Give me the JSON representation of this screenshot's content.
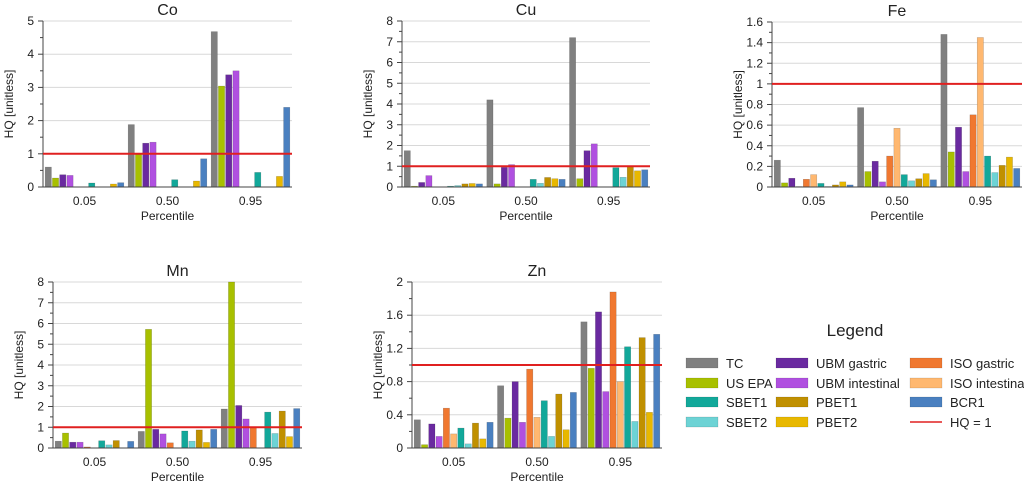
{
  "legend": {
    "title": "Legend",
    "hq_line_label": "HQ = 1",
    "hq_line_color": "#e02020"
  },
  "series": [
    {
      "name": "TC",
      "color": "#808080"
    },
    {
      "name": "US EPA",
      "color": "#a8c000"
    },
    {
      "name": "UBM gastric",
      "color": "#6a2aa0"
    },
    {
      "name": "UBM intestinal",
      "color": "#b050e0"
    },
    {
      "name": "ISO gastric",
      "color": "#f07830"
    },
    {
      "name": "ISO intestinal",
      "color": "#ffb870"
    },
    {
      "name": "SBET1",
      "color": "#12a89a"
    },
    {
      "name": "SBET2",
      "color": "#6dd3d5"
    },
    {
      "name": "PBET1",
      "color": "#c09000"
    },
    {
      "name": "PBET2",
      "color": "#e8b800"
    },
    {
      "name": "BCR1",
      "color": "#4a80c0"
    }
  ],
  "legend_order": [
    "TC",
    "US EPA",
    "SBET1",
    "SBET2",
    "UBM gastric",
    "UBM intestinal",
    "PBET1",
    "PBET2",
    "ISO gastric",
    "ISO intestinal",
    "BCR1"
  ],
  "chart_data": [
    {
      "type": "bar",
      "title": "Co",
      "xlabel": "Percentile",
      "ylabel": "HQ [unitless]",
      "categories": [
        "0.05",
        "0.50",
        "0.95"
      ],
      "ylim": [
        0,
        5
      ],
      "yticks": [
        0,
        1,
        2,
        3,
        4,
        5
      ],
      "ytick_labels": [
        "0",
        "1",
        "2",
        "3",
        "4",
        "5"
      ],
      "grid": true,
      "reference_line": 1,
      "values": [
        [
          0.6,
          0.27,
          0.37,
          0.35,
          null,
          null,
          0.12,
          null,
          null,
          0.09,
          0.13
        ],
        [
          1.88,
          0.98,
          1.32,
          1.35,
          null,
          null,
          0.22,
          null,
          null,
          0.18,
          0.85
        ],
        [
          4.68,
          3.04,
          3.38,
          3.5,
          null,
          null,
          0.44,
          null,
          null,
          0.32,
          2.4
        ]
      ]
    },
    {
      "type": "bar",
      "title": "Cu",
      "xlabel": "Percentile",
      "ylabel": "HQ [unitless]",
      "categories": [
        "0.05",
        "0.50",
        "0.95"
      ],
      "ylim": [
        0,
        8
      ],
      "yticks": [
        0,
        1,
        2,
        3,
        4,
        5,
        6,
        7,
        8
      ],
      "ytick_labels": [
        "0",
        "1",
        "2",
        "3",
        "4",
        "5",
        "6",
        "7",
        "8"
      ],
      "grid": true,
      "reference_line": 1,
      "values": [
        [
          1.75,
          0.04,
          0.22,
          0.55,
          null,
          null,
          0.04,
          0.07,
          0.15,
          0.17,
          0.15
        ],
        [
          4.2,
          0.15,
          0.95,
          1.08,
          null,
          null,
          0.37,
          0.18,
          0.46,
          0.4,
          0.37
        ],
        [
          7.2,
          0.4,
          1.75,
          2.08,
          null,
          null,
          0.93,
          0.47,
          1.0,
          0.78,
          0.83
        ]
      ]
    },
    {
      "type": "bar",
      "title": "Fe",
      "xlabel": "Percentile",
      "ylabel": "HQ [unitless]",
      "categories": [
        "0.05",
        "0.50",
        "0.95"
      ],
      "ylim": [
        0,
        1.6
      ],
      "yticks": [
        0,
        0.2,
        0.4,
        0.6,
        0.8,
        1,
        1.2,
        1.4,
        1.6
      ],
      "ytick_labels": [
        "0",
        "0.2",
        "0.4",
        "0.6",
        "0.8",
        "1",
        "1.2",
        "1.4",
        "1.6"
      ],
      "grid": true,
      "reference_line": 1,
      "values": [
        [
          0.26,
          0.04,
          0.085,
          0.005,
          0.075,
          0.12,
          0.035,
          0.005,
          0.02,
          0.05,
          0.02
        ],
        [
          0.77,
          0.15,
          0.25,
          0.05,
          0.3,
          0.57,
          0.12,
          0.06,
          0.08,
          0.13,
          0.07
        ],
        [
          1.48,
          0.34,
          0.58,
          0.15,
          0.7,
          1.45,
          0.3,
          0.14,
          0.21,
          0.29,
          0.18
        ]
      ]
    },
    {
      "type": "bar",
      "title": "Mn",
      "xlabel": "Percentile",
      "ylabel": "HQ [unitless]",
      "categories": [
        "0.05",
        "0.50",
        "0.95"
      ],
      "ylim": [
        0,
        8
      ],
      "yticks": [
        0,
        1,
        2,
        3,
        4,
        5,
        6,
        7,
        8
      ],
      "ytick_labels": [
        "0",
        "1",
        "2",
        "3",
        "4",
        "5",
        "6",
        "7",
        "8"
      ],
      "grid": true,
      "reference_line": 1,
      "values": [
        [
          0.33,
          0.72,
          0.28,
          0.28,
          0.05,
          null,
          0.35,
          0.15,
          0.36,
          null,
          0.32
        ],
        [
          0.8,
          5.72,
          0.9,
          0.68,
          0.25,
          null,
          0.82,
          0.33,
          0.87,
          0.27,
          0.9
        ],
        [
          1.88,
          8.0,
          2.05,
          1.4,
          1.0,
          null,
          1.73,
          0.7,
          1.78,
          0.55,
          1.9
        ]
      ]
    },
    {
      "type": "bar",
      "title": "Zn",
      "xlabel": "Percentile",
      "ylabel": "HQ [unitless]",
      "categories": [
        "0.05",
        "0.50",
        "0.95"
      ],
      "ylim": [
        0,
        2
      ],
      "yticks": [
        0,
        0.4,
        0.8,
        1.2,
        1.6,
        2
      ],
      "ytick_labels": [
        "0",
        "0.4",
        "0.8",
        "1.2",
        "1.6",
        "2"
      ],
      "grid": true,
      "reference_line": 1,
      "values": [
        [
          0.34,
          0.04,
          0.29,
          0.14,
          0.48,
          0.17,
          0.24,
          0.05,
          0.3,
          0.11,
          0.31
        ],
        [
          0.75,
          0.36,
          0.8,
          0.31,
          0.95,
          0.37,
          0.57,
          0.14,
          0.65,
          0.22,
          0.67
        ],
        [
          1.52,
          0.96,
          1.64,
          0.68,
          1.88,
          0.8,
          1.22,
          0.32,
          1.33,
          0.43,
          1.37
        ]
      ]
    }
  ]
}
